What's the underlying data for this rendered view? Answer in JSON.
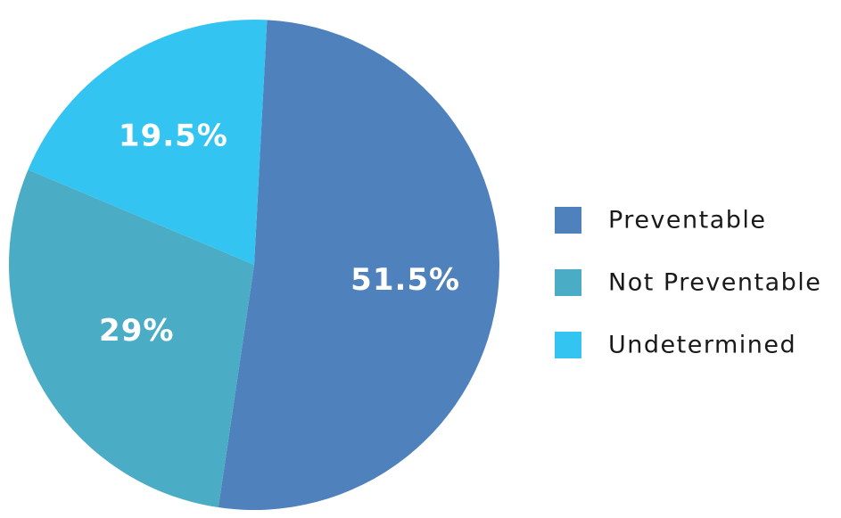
{
  "chart_data": {
    "type": "pie",
    "title": "",
    "start_angle_deg": 3,
    "direction": "clockwise",
    "slices": [
      {
        "name": "Preventable",
        "value": 51.5,
        "label": "51.5%",
        "color": "#4f81bd"
      },
      {
        "name": "Not Preventable",
        "value": 29,
        "label": "29%",
        "color": "#4bacc6"
      },
      {
        "name": "Undetermined",
        "value": 19.5,
        "label": "19.5%",
        "color": "#33c4f2"
      }
    ],
    "legend": {
      "placement": "right",
      "entries": [
        "Preventable",
        "Not Preventable",
        "Undetermined"
      ]
    }
  }
}
